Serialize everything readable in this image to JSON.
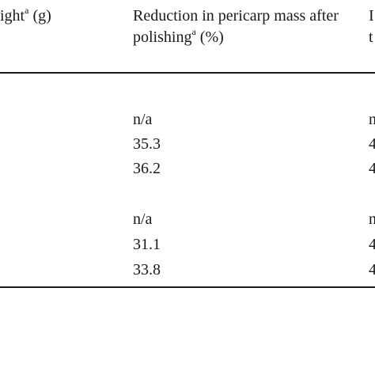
{
  "table": {
    "headers": {
      "col_left": {
        "text": "ight",
        "sup": "a",
        "suffix": " (g)"
      },
      "col_mid": {
        "line1": "Reduction in pericarp mass after",
        "line2_text": "polishing",
        "line2_sup": "a",
        "line2_suffix": " (%)"
      },
      "col_right": {
        "line1": "I",
        "line2": "t"
      }
    },
    "groups": [
      {
        "rows": [
          {
            "mid": "n/a",
            "right": "n"
          },
          {
            "mid": "35.3",
            "right": "4"
          },
          {
            "mid": "36.2",
            "right": "4"
          }
        ]
      },
      {
        "rows": [
          {
            "mid": "n/a",
            "right": "n"
          },
          {
            "mid": "31.1",
            "right": "4"
          },
          {
            "mid": "33.8",
            "right": "4"
          }
        ]
      }
    ]
  }
}
